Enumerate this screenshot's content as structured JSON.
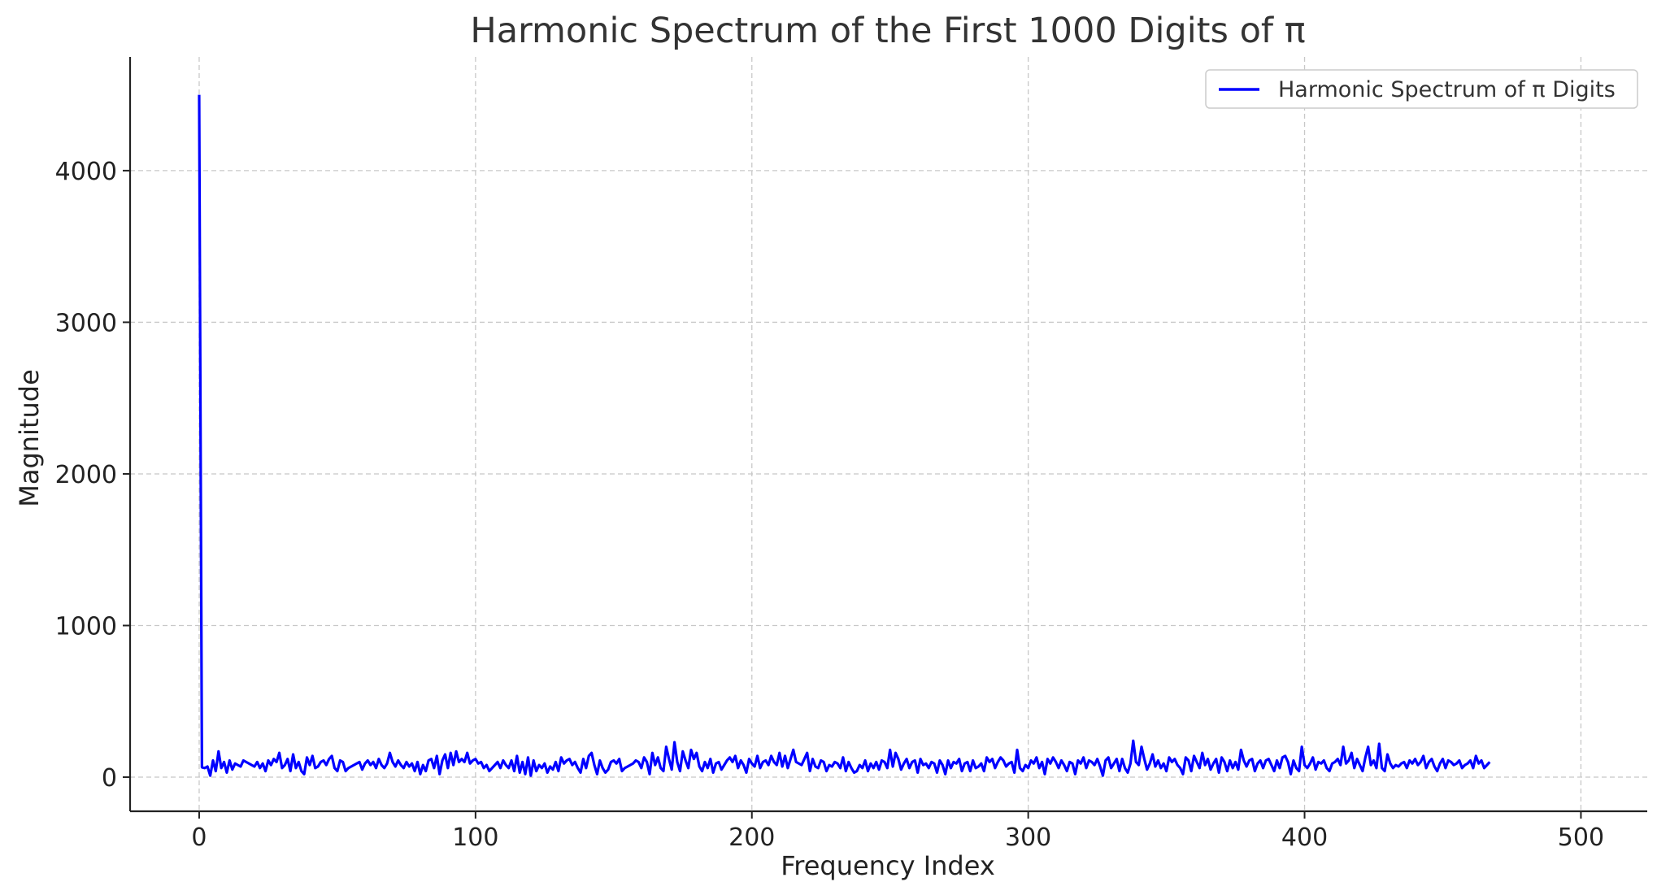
{
  "chart_data": {
    "type": "line",
    "title": "Harmonic Spectrum of the First 1000 Digits of π",
    "xlabel": "Frequency Index",
    "ylabel": "Magnitude",
    "xlim": [
      -25,
      524
    ],
    "ylim": [
      -225,
      4750
    ],
    "xticks": [
      0,
      100,
      200,
      300,
      400,
      500
    ],
    "yticks": [
      0,
      1000,
      2000,
      3000,
      4000
    ],
    "grid": true,
    "legend_position": "top-right",
    "series": [
      {
        "name": "Harmonic Spectrum of π Digits",
        "color": "#0000ff",
        "x_start": 0,
        "x_step": 1,
        "values": [
          4500,
          65,
          60,
          70,
          10,
          110,
          40,
          170,
          60,
          100,
          30,
          110,
          50,
          90,
          80,
          70,
          110,
          100,
          90,
          80,
          70,
          100,
          60,
          90,
          40,
          110,
          80,
          120,
          100,
          160,
          60,
          80,
          120,
          40,
          150,
          60,
          100,
          40,
          20,
          130,
          80,
          140,
          60,
          70,
          100,
          110,
          80,
          120,
          140,
          60,
          40,
          110,
          100,
          40,
          60,
          70,
          80,
          90,
          100,
          50,
          90,
          110,
          80,
          100,
          60,
          120,
          80,
          60,
          90,
          160,
          100,
          70,
          110,
          80,
          60,
          100,
          70,
          90,
          40,
          100,
          20,
          80,
          40,
          110,
          120,
          60,
          140,
          20,
          110,
          150,
          60,
          160,
          80,
          170,
          100,
          120,
          100,
          160,
          90,
          110,
          120,
          90,
          100,
          60,
          80,
          40,
          60,
          80,
          100,
          60,
          110,
          80,
          60,
          110,
          40,
          140,
          30,
          100,
          20,
          130,
          10,
          110,
          40,
          80,
          60,
          90,
          30,
          70,
          50,
          100,
          40,
          130,
          90,
          110,
          120,
          80,
          100,
          60,
          30,
          120,
          60,
          140,
          160,
          80,
          20,
          110,
          60,
          30,
          50,
          100,
          110,
          90,
          120,
          40,
          60,
          70,
          80,
          90,
          110,
          100,
          60,
          130,
          100,
          20,
          160,
          80,
          130,
          60,
          40,
          200,
          120,
          50,
          230,
          100,
          40,
          170,
          110,
          60,
          180,
          120,
          160,
          70,
          40,
          100,
          60,
          120,
          30,
          90,
          100,
          50,
          80,
          110,
          130,
          100,
          140,
          60,
          110,
          80,
          30,
          120,
          90,
          70,
          140,
          60,
          100,
          110,
          80,
          140,
          100,
          80,
          160,
          70,
          140,
          60,
          120,
          180,
          100,
          90,
          80,
          120,
          160,
          40,
          120,
          70,
          60,
          110,
          100,
          40,
          80,
          70,
          100,
          90,
          60,
          130,
          40,
          100,
          60,
          30,
          40,
          80,
          60,
          110,
          40,
          90,
          60,
          100,
          50,
          110,
          100,
          60,
          180,
          70,
          160,
          120,
          50,
          90,
          120,
          60,
          100,
          110,
          30,
          120,
          80,
          90,
          60,
          100,
          90,
          30,
          110,
          80,
          20,
          110,
          60,
          100,
          90,
          120,
          40,
          90,
          100,
          40,
          110,
          60,
          70,
          90,
          40,
          130,
          100,
          120,
          60,
          100,
          130,
          110,
          70,
          90,
          100,
          30,
          180,
          60,
          40,
          80,
          60,
          110,
          90,
          130,
          60,
          100,
          20,
          120,
          90,
          130,
          100,
          60,
          110,
          80,
          40,
          100,
          90,
          20,
          110,
          90,
          130,
          60,
          110,
          100,
          80,
          120,
          70,
          10,
          110,
          130,
          60,
          90,
          120,
          40,
          120,
          60,
          30,
          90,
          240,
          100,
          80,
          200,
          120,
          50,
          90,
          150,
          70,
          110,
          60,
          90,
          40,
          130,
          100,
          120,
          80,
          60,
          20,
          130,
          110,
          40,
          140,
          100,
          60,
          160,
          80,
          120,
          50,
          90,
          120,
          30,
          130,
          100,
          40,
          110,
          60,
          100,
          50,
          180,
          110,
          70,
          110,
          120,
          40,
          90,
          110,
          60,
          110,
          120,
          80,
          40,
          110,
          60,
          130,
          140,
          100,
          20,
          110,
          60,
          40,
          200,
          80,
          60,
          90,
          130,
          50,
          100,
          90,
          110,
          60,
          40,
          90,
          100,
          120,
          80,
          200,
          90,
          110,
          160,
          60,
          120,
          80,
          40,
          130,
          200,
          80,
          110,
          60,
          220,
          60,
          40,
          150,
          90,
          60,
          80,
          70,
          90,
          100,
          60,
          110,
          90,
          120,
          80,
          100,
          140,
          60,
          100,
          120,
          70,
          40,
          90,
          120,
          60,
          110,
          100,
          80,
          90,
          110,
          60,
          80,
          90,
          110,
          60,
          140,
          90,
          110,
          60,
          80,
          100
        ]
      }
    ]
  }
}
